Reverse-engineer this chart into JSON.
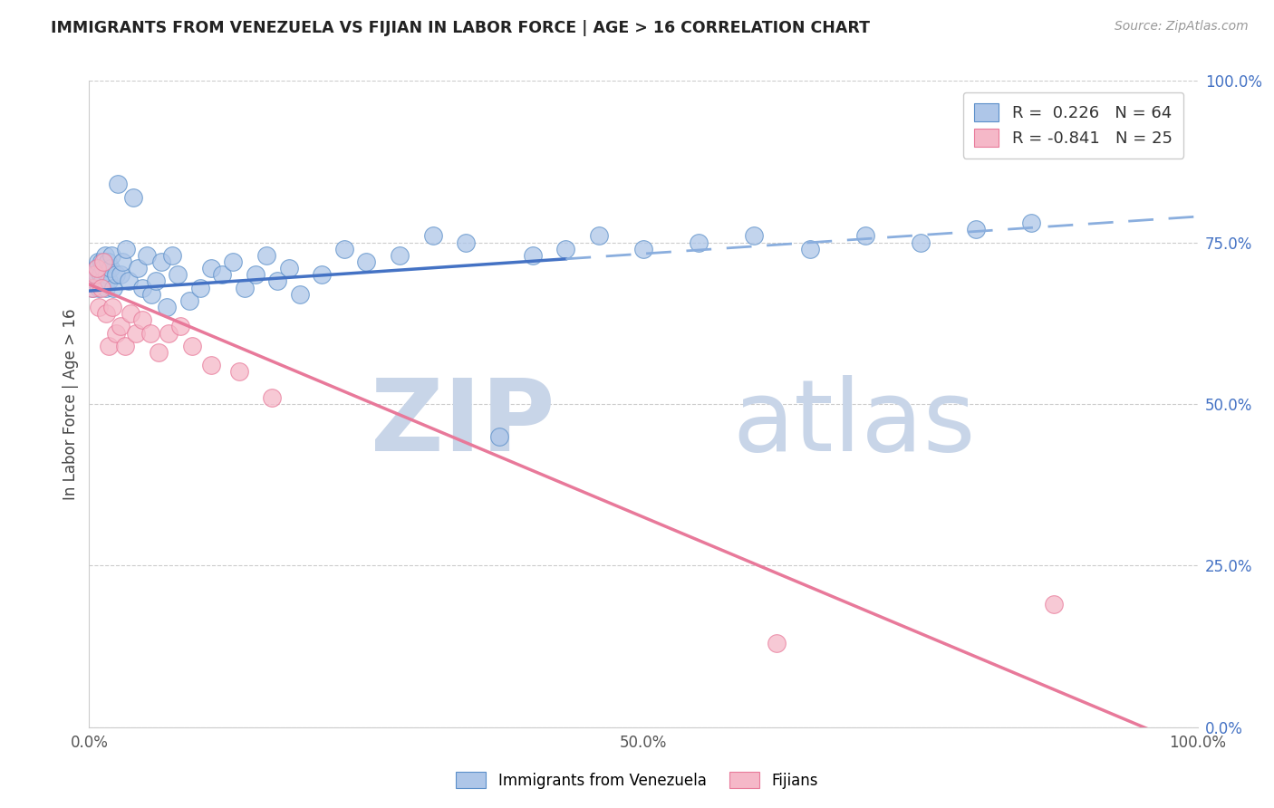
{
  "title": "IMMIGRANTS FROM VENEZUELA VS FIJIAN IN LABOR FORCE | AGE > 16 CORRELATION CHART",
  "source": "Source: ZipAtlas.com",
  "ylabel": "In Labor Force | Age > 16",
  "right_yticks": [
    0.0,
    0.25,
    0.5,
    0.75,
    1.0
  ],
  "right_yticklabels": [
    "0.0%",
    "25.0%",
    "50.0%",
    "75.0%",
    "100.0%"
  ],
  "xlim": [
    0.0,
    1.0
  ],
  "ylim": [
    0.0,
    1.0
  ],
  "xticks": [
    0.0,
    0.5,
    1.0
  ],
  "xticklabels": [
    "0.0%",
    "50.0%",
    "100.0%"
  ],
  "R_venezuela": 0.226,
  "N_venezuela": 64,
  "R_fijian": -0.841,
  "N_fijian": 25,
  "blue_scatter_color": "#aec6e8",
  "blue_edge_color": "#5b8fc9",
  "pink_scatter_color": "#f5b8c8",
  "pink_edge_color": "#e87a9a",
  "blue_line_color": "#4472C4",
  "blue_dash_color": "#8aaede",
  "pink_line_color": "#e8799a",
  "watermark_zip": "ZIP",
  "watermark_atlas": "atlas",
  "watermark_color": "#d0dff0",
  "legend_blue_label": "Immigrants from Venezuela",
  "legend_pink_label": "Fijians",
  "v_line_start": 0.0,
  "v_line_solid_end": 0.43,
  "v_line_end": 1.0,
  "v_intercept": 0.675,
  "v_slope": 0.115,
  "f_intercept": 0.685,
  "f_slope": -0.72,
  "venezuela_x": [
    0.003,
    0.004,
    0.005,
    0.006,
    0.007,
    0.008,
    0.009,
    0.01,
    0.011,
    0.012,
    0.013,
    0.014,
    0.015,
    0.016,
    0.017,
    0.018,
    0.019,
    0.02,
    0.022,
    0.024,
    0.026,
    0.028,
    0.03,
    0.033,
    0.036,
    0.04,
    0.044,
    0.048,
    0.052,
    0.056,
    0.06,
    0.065,
    0.07,
    0.075,
    0.08,
    0.09,
    0.1,
    0.11,
    0.12,
    0.13,
    0.14,
    0.15,
    0.16,
    0.17,
    0.18,
    0.19,
    0.21,
    0.23,
    0.25,
    0.28,
    0.31,
    0.34,
    0.37,
    0.4,
    0.43,
    0.46,
    0.5,
    0.55,
    0.6,
    0.65,
    0.7,
    0.75,
    0.8,
    0.85
  ],
  "venezuela_y": [
    0.68,
    0.7,
    0.69,
    0.71,
    0.7,
    0.72,
    0.68,
    0.7,
    0.72,
    0.69,
    0.71,
    0.73,
    0.68,
    0.7,
    0.72,
    0.69,
    0.71,
    0.73,
    0.68,
    0.7,
    0.84,
    0.7,
    0.72,
    0.74,
    0.69,
    0.82,
    0.71,
    0.68,
    0.73,
    0.67,
    0.69,
    0.72,
    0.65,
    0.73,
    0.7,
    0.66,
    0.68,
    0.71,
    0.7,
    0.72,
    0.68,
    0.7,
    0.73,
    0.69,
    0.71,
    0.67,
    0.7,
    0.74,
    0.72,
    0.73,
    0.76,
    0.75,
    0.45,
    0.73,
    0.74,
    0.76,
    0.74,
    0.75,
    0.76,
    0.74,
    0.76,
    0.75,
    0.77,
    0.78
  ],
  "fijian_x": [
    0.003,
    0.005,
    0.007,
    0.009,
    0.011,
    0.013,
    0.015,
    0.018,
    0.021,
    0.024,
    0.028,
    0.032,
    0.037,
    0.042,
    0.048,
    0.055,
    0.063,
    0.072,
    0.082,
    0.093,
    0.11,
    0.135,
    0.165,
    0.62,
    0.87
  ],
  "fijian_y": [
    0.68,
    0.7,
    0.71,
    0.65,
    0.68,
    0.72,
    0.64,
    0.59,
    0.65,
    0.61,
    0.62,
    0.59,
    0.64,
    0.61,
    0.63,
    0.61,
    0.58,
    0.61,
    0.62,
    0.59,
    0.56,
    0.55,
    0.51,
    0.13,
    0.19
  ]
}
